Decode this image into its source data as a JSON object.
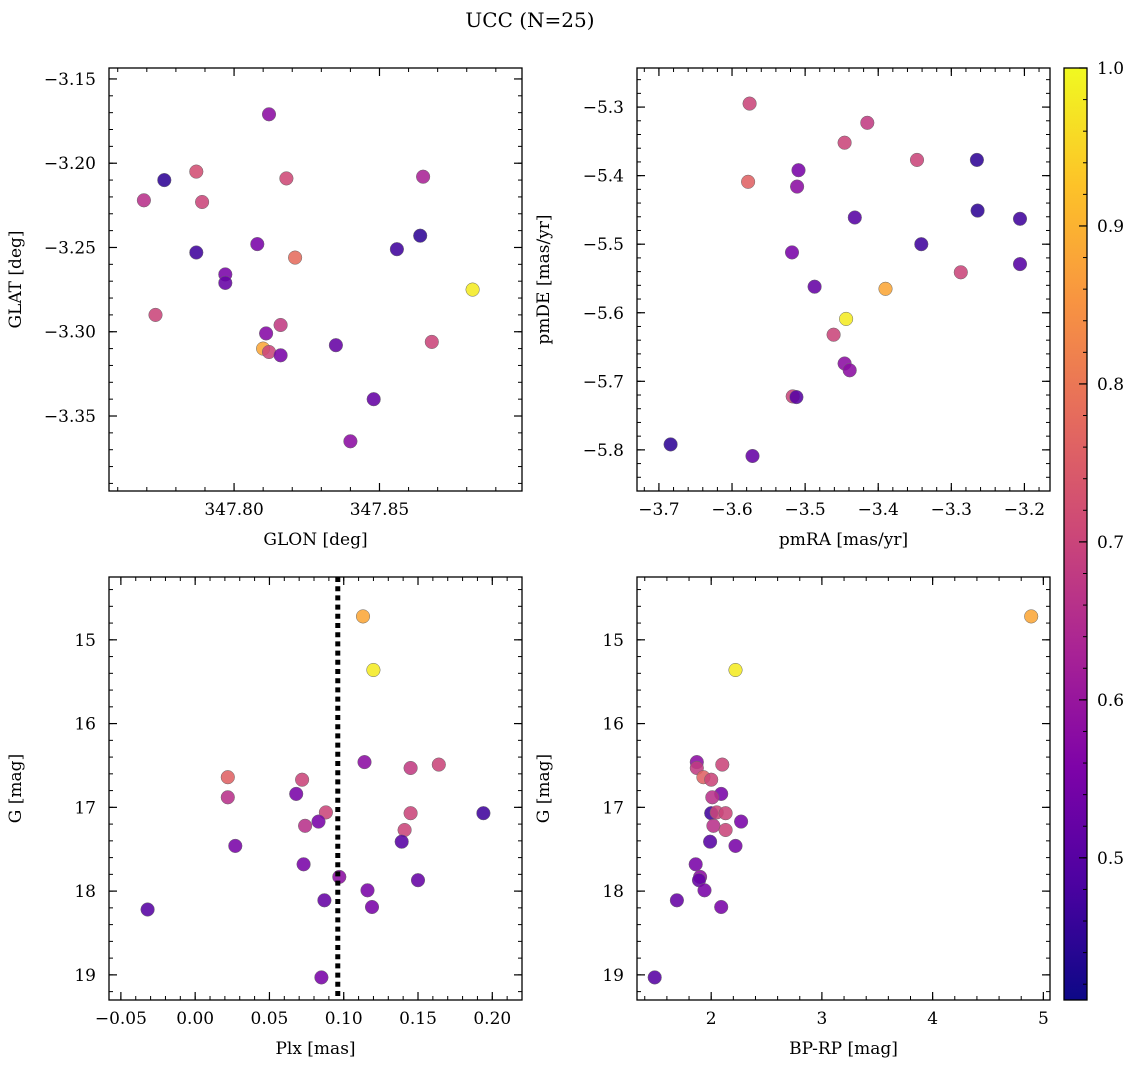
{
  "figure": {
    "title": "UCC (N=25)"
  },
  "colorbar": {
    "cmap": "plasma",
    "vmin": 0.41,
    "vmax": 1.0,
    "ticks": [
      0.5,
      0.6,
      0.7,
      0.8,
      0.9,
      1.0
    ],
    "tick_labels": [
      "0.5",
      "0.6",
      "0.7",
      "0.8",
      "0.9",
      "1.0"
    ]
  },
  "chart_data": [
    {
      "type": "scatter",
      "xlabel": "GLON [deg]",
      "ylabel": "GLAT [deg]",
      "xlim": [
        347.757,
        347.899
      ],
      "ylim": [
        -3.3945,
        -3.1435
      ],
      "invert_y": false,
      "xticks": [
        347.8,
        347.85
      ],
      "xtick_labels": [
        "347.80",
        "347.85"
      ],
      "yticks": [
        -3.15,
        -3.2,
        -3.25,
        -3.3,
        -3.35
      ],
      "ytick_labels": [
        "−3.15",
        "−3.20",
        "−3.25",
        "−3.30",
        "−3.35"
      ],
      "grid": false,
      "points": [
        {
          "x": 347.776,
          "y": -3.21,
          "c": 0.45
        },
        {
          "x": 347.769,
          "y": -3.222,
          "c": 0.66
        },
        {
          "x": 347.787,
          "y": -3.205,
          "c": 0.72
        },
        {
          "x": 347.789,
          "y": -3.223,
          "c": 0.7
        },
        {
          "x": 347.787,
          "y": -3.253,
          "c": 0.47
        },
        {
          "x": 347.797,
          "y": -3.266,
          "c": 0.55
        },
        {
          "x": 347.797,
          "y": -3.271,
          "c": 0.52
        },
        {
          "x": 347.773,
          "y": -3.29,
          "c": 0.7
        },
        {
          "x": 347.812,
          "y": -3.171,
          "c": 0.58
        },
        {
          "x": 347.818,
          "y": -3.209,
          "c": 0.71
        },
        {
          "x": 347.808,
          "y": -3.248,
          "c": 0.55
        },
        {
          "x": 347.821,
          "y": -3.256,
          "c": 0.78
        },
        {
          "x": 347.811,
          "y": -3.301,
          "c": 0.57
        },
        {
          "x": 347.816,
          "y": -3.296,
          "c": 0.68
        },
        {
          "x": 347.81,
          "y": -3.31,
          "c": 0.88
        },
        {
          "x": 347.812,
          "y": -3.312,
          "c": 0.7
        },
        {
          "x": 347.816,
          "y": -3.314,
          "c": 0.55
        },
        {
          "x": 347.835,
          "y": -3.308,
          "c": 0.52
        },
        {
          "x": 347.848,
          "y": -3.34,
          "c": 0.52
        },
        {
          "x": 347.84,
          "y": -3.365,
          "c": 0.58
        },
        {
          "x": 347.856,
          "y": -3.251,
          "c": 0.47
        },
        {
          "x": 347.864,
          "y": -3.243,
          "c": 0.45
        },
        {
          "x": 347.865,
          "y": -3.208,
          "c": 0.63
        },
        {
          "x": 347.868,
          "y": -3.306,
          "c": 0.7
        },
        {
          "x": 347.882,
          "y": -3.275,
          "c": 0.98
        }
      ]
    },
    {
      "type": "scatter",
      "xlabel": "pmRA [mas/yr]",
      "ylabel": "pmDE [mas/yr]",
      "xlim": [
        -3.73,
        -3.165
      ],
      "ylim": [
        -5.86,
        -5.243
      ],
      "invert_y": false,
      "xticks": [
        -3.7,
        -3.6,
        -3.5,
        -3.4,
        -3.3,
        -3.2
      ],
      "xtick_labels": [
        "−3.7",
        "−3.6",
        "−3.5",
        "−3.4",
        "−3.3",
        "−3.2"
      ],
      "yticks": [
        -5.3,
        -5.4,
        -5.5,
        -5.6,
        -5.7,
        -5.8
      ],
      "ytick_labels": [
        "−5.3",
        "−5.4",
        "−5.5",
        "−5.6",
        "−5.7",
        "−5.8"
      ],
      "grid": false,
      "points": [
        {
          "x": -3.576,
          "y": -5.295,
          "c": 0.7
        },
        {
          "x": -3.578,
          "y": -5.409,
          "c": 0.76
        },
        {
          "x": -3.415,
          "y": -5.323,
          "c": 0.68
        },
        {
          "x": -3.446,
          "y": -5.352,
          "c": 0.7
        },
        {
          "x": -3.509,
          "y": -5.392,
          "c": 0.55
        },
        {
          "x": -3.511,
          "y": -5.416,
          "c": 0.58
        },
        {
          "x": -3.347,
          "y": -5.377,
          "c": 0.7
        },
        {
          "x": -3.265,
          "y": -5.377,
          "c": 0.45
        },
        {
          "x": -3.432,
          "y": -5.461,
          "c": 0.5
        },
        {
          "x": -3.264,
          "y": -5.451,
          "c": 0.45
        },
        {
          "x": -3.206,
          "y": -5.463,
          "c": 0.47
        },
        {
          "x": -3.518,
          "y": -5.512,
          "c": 0.55
        },
        {
          "x": -3.341,
          "y": -5.5,
          "c": 0.47
        },
        {
          "x": -3.206,
          "y": -5.529,
          "c": 0.5
        },
        {
          "x": -3.287,
          "y": -5.541,
          "c": 0.7
        },
        {
          "x": -3.487,
          "y": -5.562,
          "c": 0.52
        },
        {
          "x": -3.39,
          "y": -5.565,
          "c": 0.88
        },
        {
          "x": -3.444,
          "y": -5.609,
          "c": 0.98
        },
        {
          "x": -3.461,
          "y": -5.632,
          "c": 0.7
        },
        {
          "x": -3.446,
          "y": -5.674,
          "c": 0.58
        },
        {
          "x": -3.439,
          "y": -5.684,
          "c": 0.58
        },
        {
          "x": -3.517,
          "y": -5.722,
          "c": 0.7
        },
        {
          "x": -3.512,
          "y": -5.723,
          "c": 0.5
        },
        {
          "x": -3.684,
          "y": -5.792,
          "c": 0.45
        },
        {
          "x": -3.572,
          "y": -5.809,
          "c": 0.52
        }
      ]
    },
    {
      "type": "scatter",
      "xlabel": "Plx [mas]",
      "ylabel": "G [mag]",
      "xlim": [
        -0.058,
        0.22
      ],
      "ylim": [
        14.25,
        19.3
      ],
      "invert_y": true,
      "xticks": [
        -0.05,
        0.0,
        0.05,
        0.1,
        0.15,
        0.2
      ],
      "xtick_labels": [
        "−0.05",
        "0.00",
        "0.05",
        "0.10",
        "0.15",
        "0.20"
      ],
      "yticks": [
        15,
        16,
        17,
        18,
        19
      ],
      "ytick_labels": [
        "15",
        "16",
        "17",
        "18",
        "19"
      ],
      "grid": false,
      "vline": {
        "x": 0.096,
        "style": "dotted"
      },
      "points": [
        {
          "x": 0.113,
          "y": 14.72,
          "c": 0.88
        },
        {
          "x": 0.12,
          "y": 15.36,
          "c": 0.98
        },
        {
          "x": 0.022,
          "y": 16.64,
          "c": 0.76
        },
        {
          "x": 0.072,
          "y": 16.67,
          "c": 0.7
        },
        {
          "x": 0.022,
          "y": 16.88,
          "c": 0.66
        },
        {
          "x": 0.068,
          "y": 16.84,
          "c": 0.55
        },
        {
          "x": 0.114,
          "y": 16.46,
          "c": 0.58
        },
        {
          "x": 0.164,
          "y": 16.49,
          "c": 0.7
        },
        {
          "x": 0.145,
          "y": 16.53,
          "c": 0.68
        },
        {
          "x": 0.088,
          "y": 17.06,
          "c": 0.7
        },
        {
          "x": 0.074,
          "y": 17.22,
          "c": 0.66
        },
        {
          "x": 0.083,
          "y": 17.17,
          "c": 0.55
        },
        {
          "x": 0.145,
          "y": 17.07,
          "c": 0.7
        },
        {
          "x": 0.141,
          "y": 17.27,
          "c": 0.7
        },
        {
          "x": 0.139,
          "y": 17.41,
          "c": 0.5
        },
        {
          "x": 0.194,
          "y": 17.07,
          "c": 0.47
        },
        {
          "x": 0.027,
          "y": 17.46,
          "c": 0.55
        },
        {
          "x": 0.073,
          "y": 17.68,
          "c": 0.55
        },
        {
          "x": 0.097,
          "y": 17.83,
          "c": 0.58
        },
        {
          "x": 0.116,
          "y": 17.99,
          "c": 0.55
        },
        {
          "x": 0.15,
          "y": 17.87,
          "c": 0.52
        },
        {
          "x": 0.087,
          "y": 18.11,
          "c": 0.52
        },
        {
          "x": 0.119,
          "y": 18.19,
          "c": 0.55
        },
        {
          "x": -0.032,
          "y": 18.22,
          "c": 0.5
        },
        {
          "x": 0.085,
          "y": 19.03,
          "c": 0.55
        }
      ]
    },
    {
      "type": "scatter",
      "xlabel": "BP-RP [mag]",
      "ylabel": "G [mag]",
      "xlim": [
        1.33,
        5.06
      ],
      "ylim": [
        14.25,
        19.3
      ],
      "invert_y": true,
      "xticks": [
        2,
        3,
        4,
        5
      ],
      "xtick_labels": [
        "2",
        "3",
        "4",
        "5"
      ],
      "yticks": [
        15,
        16,
        17,
        18,
        19
      ],
      "ytick_labels": [
        "15",
        "16",
        "17",
        "18",
        "19"
      ],
      "grid": false,
      "points": [
        {
          "x": 4.89,
          "y": 14.72,
          "c": 0.88
        },
        {
          "x": 2.22,
          "y": 15.36,
          "c": 0.98
        },
        {
          "x": 1.87,
          "y": 16.46,
          "c": 0.58
        },
        {
          "x": 1.87,
          "y": 16.53,
          "c": 0.68
        },
        {
          "x": 1.93,
          "y": 16.64,
          "c": 0.76
        },
        {
          "x": 2.0,
          "y": 16.67,
          "c": 0.7
        },
        {
          "x": 2.1,
          "y": 16.49,
          "c": 0.7
        },
        {
          "x": 2.09,
          "y": 16.84,
          "c": 0.55
        },
        {
          "x": 2.01,
          "y": 16.88,
          "c": 0.66
        },
        {
          "x": 2.0,
          "y": 17.07,
          "c": 0.47
        },
        {
          "x": 2.05,
          "y": 17.06,
          "c": 0.7
        },
        {
          "x": 2.13,
          "y": 17.07,
          "c": 0.7
        },
        {
          "x": 2.02,
          "y": 17.22,
          "c": 0.66
        },
        {
          "x": 2.13,
          "y": 17.27,
          "c": 0.7
        },
        {
          "x": 2.27,
          "y": 17.17,
          "c": 0.55
        },
        {
          "x": 1.99,
          "y": 17.41,
          "c": 0.5
        },
        {
          "x": 2.22,
          "y": 17.46,
          "c": 0.55
        },
        {
          "x": 1.86,
          "y": 17.68,
          "c": 0.55
        },
        {
          "x": 1.9,
          "y": 17.83,
          "c": 0.58
        },
        {
          "x": 1.89,
          "y": 17.87,
          "c": 0.52
        },
        {
          "x": 1.94,
          "y": 17.99,
          "c": 0.55
        },
        {
          "x": 1.69,
          "y": 18.11,
          "c": 0.52
        },
        {
          "x": 2.09,
          "y": 18.19,
          "c": 0.55
        },
        {
          "x": 1.49,
          "y": 19.03,
          "c": 0.5
        }
      ]
    }
  ]
}
